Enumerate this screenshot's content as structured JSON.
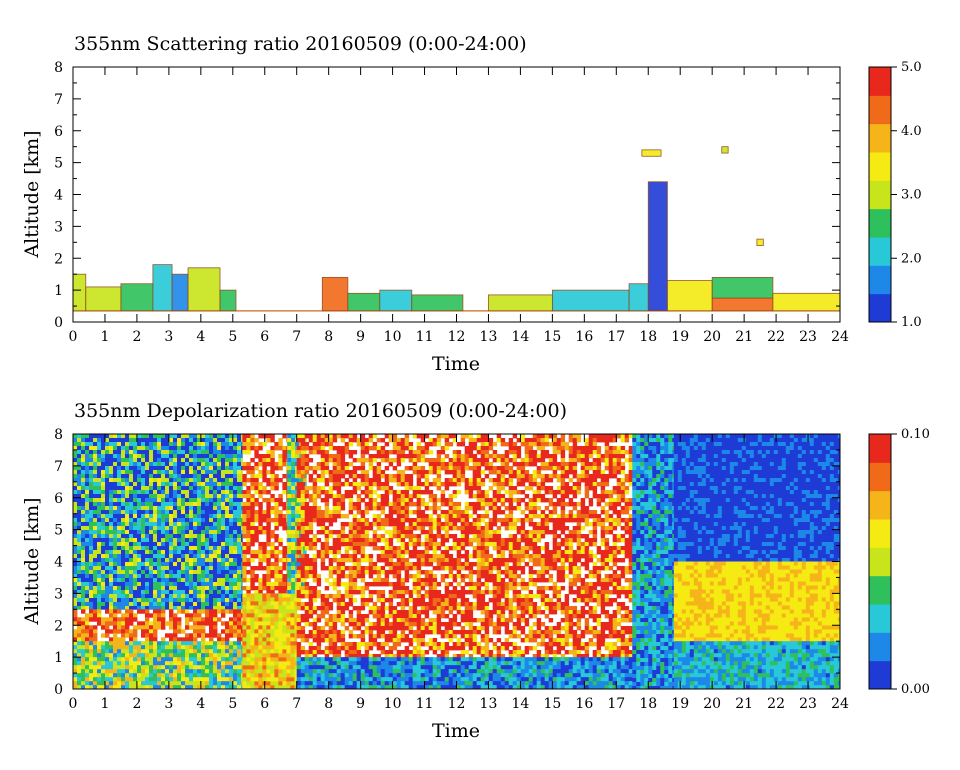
{
  "colors": {
    "scale": [
      "#1f3bd6",
      "#1e88e8",
      "#28c8d8",
      "#2ec05a",
      "#c8e41a",
      "#f5ea12",
      "#f5b41a",
      "#f06a18",
      "#e8281c"
    ],
    "scatter_baseline": "#d2691e",
    "contour": "#8b4513"
  },
  "chart_data": [
    {
      "type": "heatmap",
      "title": "355nm Scattering ratio  20160509 (0:00-24:00)",
      "xlabel": "Time",
      "ylabel": "Altitude [km]",
      "xlim": [
        0,
        24
      ],
      "ylim": [
        0,
        8
      ],
      "x_ticks": [
        "0",
        "1",
        "2",
        "3",
        "4",
        "5",
        "6",
        "7",
        "8",
        "9",
        "10",
        "11",
        "12",
        "13",
        "14",
        "15",
        "16",
        "17",
        "18",
        "19",
        "20",
        "21",
        "22",
        "23",
        "24"
      ],
      "y_ticks": [
        "0",
        "1",
        "2",
        "3",
        "4",
        "5",
        "6",
        "7",
        "8"
      ],
      "colorbar": {
        "range": [
          1.0,
          5.0
        ],
        "labels": [
          "1.0",
          "2.0",
          "3.0",
          "4.0",
          "5.0"
        ]
      },
      "baseline_altitude_km": 0.35,
      "features": [
        {
          "t0": 0.0,
          "t1": 0.4,
          "h0": 0.35,
          "h1": 1.5,
          "value": 2.8
        },
        {
          "t0": 0.4,
          "t1": 1.5,
          "h0": 0.35,
          "h1": 1.1,
          "value": 3.0
        },
        {
          "t0": 1.5,
          "t1": 2.5,
          "h0": 0.35,
          "h1": 1.2,
          "value": 2.6
        },
        {
          "t0": 2.5,
          "t1": 3.1,
          "h0": 0.35,
          "h1": 1.8,
          "value": 2.2
        },
        {
          "t0": 3.1,
          "t1": 3.6,
          "h0": 0.35,
          "h1": 1.5,
          "value": 1.6
        },
        {
          "t0": 3.6,
          "t1": 4.6,
          "h0": 0.35,
          "h1": 1.7,
          "value": 3.2
        },
        {
          "t0": 4.6,
          "t1": 5.1,
          "h0": 0.35,
          "h1": 1.0,
          "value": 2.4
        },
        {
          "t0": 7.8,
          "t1": 8.6,
          "h0": 0.35,
          "h1": 1.4,
          "value": 4.2
        },
        {
          "t0": 8.6,
          "t1": 9.6,
          "h0": 0.35,
          "h1": 0.9,
          "value": 2.4
        },
        {
          "t0": 9.6,
          "t1": 10.6,
          "h0": 0.35,
          "h1": 1.0,
          "value": 2.2
        },
        {
          "t0": 10.6,
          "t1": 12.2,
          "h0": 0.35,
          "h1": 0.85,
          "value": 2.6
        },
        {
          "t0": 13.0,
          "t1": 15.0,
          "h0": 0.35,
          "h1": 0.85,
          "value": 3.0
        },
        {
          "t0": 15.0,
          "t1": 17.4,
          "h0": 0.35,
          "h1": 1.0,
          "value": 2.2
        },
        {
          "t0": 17.4,
          "t1": 18.0,
          "h0": 0.35,
          "h1": 1.2,
          "value": 2.0
        },
        {
          "t0": 18.0,
          "t1": 18.6,
          "h0": 0.35,
          "h1": 4.4,
          "value": 1.4
        },
        {
          "t0": 18.6,
          "t1": 20.0,
          "h0": 0.35,
          "h1": 1.3,
          "value": 3.4
        },
        {
          "t0": 20.0,
          "t1": 21.9,
          "h0": 0.35,
          "h1": 0.75,
          "value": 4.4
        },
        {
          "t0": 20.0,
          "t1": 21.9,
          "h0": 0.75,
          "h1": 1.4,
          "value": 2.6
        },
        {
          "t0": 21.9,
          "t1": 24.0,
          "h0": 0.35,
          "h1": 0.9,
          "value": 3.4
        },
        {
          "t0": 17.8,
          "t1": 18.4,
          "h0": 5.2,
          "h1": 5.4,
          "value": 3.4
        },
        {
          "t0": 20.3,
          "t1": 20.5,
          "h0": 5.3,
          "h1": 5.5,
          "value": 3.0
        },
        {
          "t0": 21.4,
          "t1": 21.6,
          "h0": 2.4,
          "h1": 2.6,
          "value": 3.4
        }
      ]
    },
    {
      "type": "heatmap",
      "title": "355nm Depolarization ratio  20160509 (0:00-24:00)",
      "xlabel": "Time",
      "ylabel": "Altitude [km]",
      "xlim": [
        0,
        24
      ],
      "ylim": [
        0,
        8
      ],
      "x_ticks": [
        "0",
        "1",
        "2",
        "3",
        "4",
        "5",
        "6",
        "7",
        "8",
        "9",
        "10",
        "11",
        "12",
        "13",
        "14",
        "15",
        "16",
        "17",
        "18",
        "19",
        "20",
        "21",
        "22",
        "23",
        "24"
      ],
      "y_ticks": [
        "0",
        "1",
        "2",
        "3",
        "4",
        "5",
        "6",
        "7",
        "8"
      ],
      "colorbar": {
        "range": [
          0.0,
          0.1
        ],
        "labels": [
          "0.00",
          "0.10"
        ]
      },
      "regions": [
        {
          "t0": 0.0,
          "t1": 5.3,
          "h0": 2.5,
          "h1": 8.0,
          "value": 0.025,
          "noise": 0.035
        },
        {
          "t0": 0.0,
          "t1": 5.3,
          "h0": 1.5,
          "h1": 2.5,
          "value": 0.085,
          "noise": 0.02
        },
        {
          "t0": 0.0,
          "t1": 5.3,
          "h0": 0.0,
          "h1": 1.5,
          "value": 0.045,
          "noise": 0.03
        },
        {
          "t0": 5.3,
          "t1": 6.7,
          "h0": 3.0,
          "h1": 8.0,
          "value": 0.09,
          "noise": 0.03
        },
        {
          "t0": 5.3,
          "t1": 7.0,
          "h0": 0.0,
          "h1": 3.0,
          "value": 0.065,
          "noise": 0.02
        },
        {
          "t0": 6.7,
          "t1": 7.3,
          "h0": 3.0,
          "h1": 8.0,
          "value": 0.04,
          "noise": 0.03
        },
        {
          "t0": 7.0,
          "t1": 17.5,
          "h0": 1.0,
          "h1": 8.0,
          "value": 0.09,
          "noise": 0.03
        },
        {
          "t0": 7.0,
          "t1": 17.5,
          "h0": 0.0,
          "h1": 1.0,
          "value": 0.02,
          "noise": 0.02
        },
        {
          "t0": 17.5,
          "t1": 18.8,
          "h0": 0.0,
          "h1": 8.0,
          "value": 0.02,
          "noise": 0.02
        },
        {
          "t0": 18.8,
          "t1": 24.0,
          "h0": 4.0,
          "h1": 8.0,
          "value": 0.005,
          "noise": 0.015
        },
        {
          "t0": 18.8,
          "t1": 24.0,
          "h0": 1.5,
          "h1": 4.0,
          "value": 0.065,
          "noise": 0.008
        },
        {
          "t0": 18.8,
          "t1": 24.0,
          "h0": 0.0,
          "h1": 1.5,
          "value": 0.025,
          "noise": 0.015
        }
      ]
    }
  ]
}
